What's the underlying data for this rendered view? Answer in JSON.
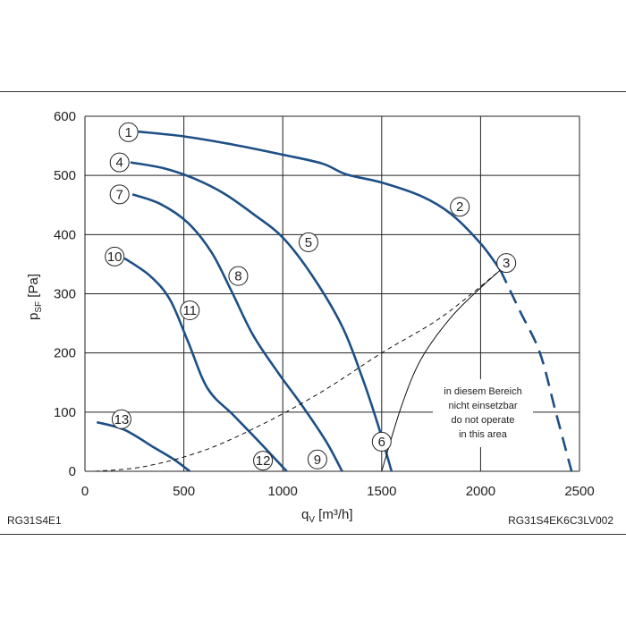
{
  "footer": {
    "left": "RG31S4E1",
    "right": "RG31S4EK6C3LV002"
  },
  "chart_data": {
    "type": "line",
    "title": "",
    "xlabel_main": "q",
    "xlabel_sub": "V",
    "xlabel_unit": "[m³/h]",
    "ylabel_main": "p",
    "ylabel_sub": "SF",
    "ylabel_unit": "[Pa]",
    "xlim": [
      0,
      2500
    ],
    "ylim": [
      0,
      600
    ],
    "xticks": [
      0,
      500,
      1000,
      1500,
      2000,
      2500
    ],
    "yticks": [
      0,
      100,
      200,
      300,
      400,
      500,
      600
    ],
    "grid": true,
    "curve_color": "#1d4f86",
    "series": [
      {
        "id": "A",
        "points": [
          [
            270,
            574
          ],
          [
            500,
            566
          ],
          [
            750,
            552
          ],
          [
            1000,
            535
          ],
          [
            1200,
            520
          ],
          [
            1320,
            502
          ],
          [
            1500,
            488
          ],
          [
            1700,
            465
          ],
          [
            1850,
            435
          ],
          [
            2000,
            385
          ],
          [
            2100,
            340
          ]
        ]
      },
      {
        "id": "A-ext",
        "dashed": true,
        "points": [
          [
            2100,
            340
          ],
          [
            2200,
            270
          ],
          [
            2300,
            200
          ],
          [
            2380,
            100
          ],
          [
            2460,
            0
          ]
        ]
      },
      {
        "id": "B",
        "points": [
          [
            230,
            522
          ],
          [
            400,
            512
          ],
          [
            550,
            495
          ],
          [
            700,
            470
          ],
          [
            850,
            435
          ],
          [
            1000,
            395
          ],
          [
            1150,
            330
          ],
          [
            1300,
            245
          ],
          [
            1400,
            160
          ],
          [
            1480,
            80
          ],
          [
            1550,
            0
          ]
        ]
      },
      {
        "id": "B-ext",
        "dashed": true,
        "points": [
          [
            1550,
            0
          ],
          [
            1600,
            -20
          ]
        ]
      },
      {
        "id": "C",
        "points": [
          [
            240,
            468
          ],
          [
            380,
            452
          ],
          [
            520,
            420
          ],
          [
            640,
            370
          ],
          [
            740,
            305
          ],
          [
            850,
            230
          ],
          [
            980,
            165
          ],
          [
            1100,
            110
          ],
          [
            1220,
            50
          ],
          [
            1300,
            0
          ]
        ]
      },
      {
        "id": "D",
        "points": [
          [
            200,
            360
          ],
          [
            330,
            330
          ],
          [
            430,
            290
          ],
          [
            520,
            220
          ],
          [
            620,
            140
          ],
          [
            750,
            95
          ],
          [
            880,
            50
          ],
          [
            1020,
            0
          ]
        ]
      },
      {
        "id": "E",
        "points": [
          [
            60,
            83
          ],
          [
            200,
            70
          ],
          [
            350,
            40
          ],
          [
            450,
            20
          ],
          [
            530,
            0
          ]
        ]
      },
      {
        "id": "system",
        "dashed": true,
        "thin": true,
        "points": [
          [
            50,
            0
          ],
          [
            300,
            8
          ],
          [
            600,
            35
          ],
          [
            900,
            80
          ],
          [
            1200,
            135
          ],
          [
            1500,
            200
          ],
          [
            1800,
            260
          ],
          [
            2100,
            340
          ]
        ]
      },
      {
        "id": "limit",
        "thin": true,
        "points": [
          [
            1500,
            0
          ],
          [
            1600,
            110
          ],
          [
            1700,
            190
          ],
          [
            1850,
            260
          ],
          [
            2000,
            310
          ],
          [
            2100,
            340
          ]
        ]
      }
    ],
    "markers": [
      {
        "label": "1",
        "x": 220,
        "y": 573
      },
      {
        "label": "2",
        "x": 1895,
        "y": 447
      },
      {
        "label": "3",
        "x": 2130,
        "y": 352
      },
      {
        "label": "4",
        "x": 175,
        "y": 522
      },
      {
        "label": "5",
        "x": 1130,
        "y": 387
      },
      {
        "label": "6",
        "x": 1500,
        "y": 50
      },
      {
        "label": "7",
        "x": 175,
        "y": 468
      },
      {
        "label": "8",
        "x": 775,
        "y": 330
      },
      {
        "label": "9",
        "x": 1175,
        "y": 20
      },
      {
        "label": "10",
        "x": 150,
        "y": 363
      },
      {
        "label": "11",
        "x": 530,
        "y": 272
      },
      {
        "label": "12",
        "x": 900,
        "y": 18
      },
      {
        "label": "13",
        "x": 185,
        "y": 88
      }
    ],
    "annotation": [
      "in diesem Bereich",
      "nicht einsetzbar",
      "do not operate",
      "in this area"
    ]
  }
}
